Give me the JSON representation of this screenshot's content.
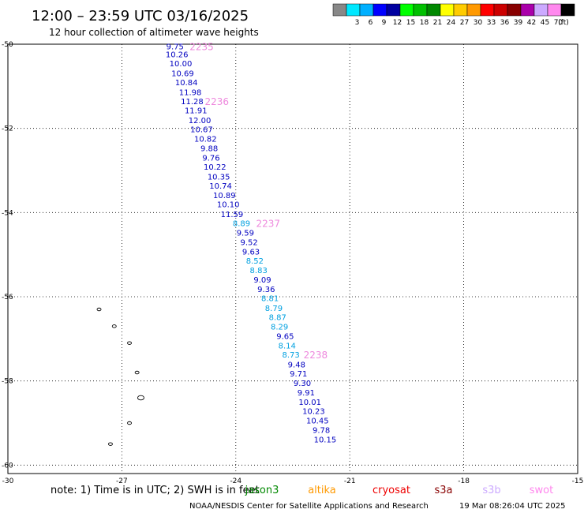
{
  "header": {
    "title": "12:00 – 23:59 UTC 03/16/2025",
    "subtitle": "12 hour collection of altimeter wave heights"
  },
  "legend": {
    "unit": "(ft)",
    "swatches": [
      {
        "color": "#888888",
        "label": ""
      },
      {
        "color": "#00e8ff",
        "label": "3"
      },
      {
        "color": "#00b0ff",
        "label": "6"
      },
      {
        "color": "#0000ff",
        "label": "9"
      },
      {
        "color": "#0000a0",
        "label": "12"
      },
      {
        "color": "#00ff00",
        "label": "15"
      },
      {
        "color": "#00c000",
        "label": "18"
      },
      {
        "color": "#008800",
        "label": "21"
      },
      {
        "color": "#ffff00",
        "label": "24"
      },
      {
        "color": "#ffcc00",
        "label": "27"
      },
      {
        "color": "#ff9900",
        "label": "30"
      },
      {
        "color": "#ff0000",
        "label": "33"
      },
      {
        "color": "#cc0000",
        "label": "36"
      },
      {
        "color": "#880000",
        "label": "39"
      },
      {
        "color": "#aa00aa",
        "label": "42"
      },
      {
        "color": "#ccaaff",
        "label": "45"
      },
      {
        "color": "#ff88ee",
        "label": "70"
      },
      {
        "color": "#000000",
        "label": ""
      }
    ]
  },
  "map": {
    "lon_range": [
      -30,
      -15
    ],
    "lat_range": [
      -60.2,
      -50
    ],
    "lon_ticks": [
      -30,
      -27,
      -24,
      -21,
      -18,
      -15
    ],
    "lat_ticks": [
      -50,
      -52,
      -54,
      -56,
      -58,
      -60
    ],
    "grid": "dotted"
  },
  "readings": [
    {
      "value": "9.75",
      "lat": -50.05,
      "lon": -25.6,
      "color": "#0000c0"
    },
    {
      "value": "10.26",
      "lat": -50.23,
      "lon": -25.55,
      "color": "#0000c0"
    },
    {
      "value": "10.00",
      "lat": -50.45,
      "lon": -25.45,
      "color": "#0000c0"
    },
    {
      "value": "10.69",
      "lat": -50.68,
      "lon": -25.4,
      "color": "#0000c0"
    },
    {
      "value": "10.84",
      "lat": -50.9,
      "lon": -25.3,
      "color": "#0000c0"
    },
    {
      "value": "11.98",
      "lat": -51.13,
      "lon": -25.2,
      "color": "#0000c0"
    },
    {
      "value": "11.28",
      "lat": -51.35,
      "lon": -25.15,
      "color": "#0000c0"
    },
    {
      "value": "11.91",
      "lat": -51.57,
      "lon": -25.05,
      "color": "#0000c0"
    },
    {
      "value": "12.00",
      "lat": -51.8,
      "lon": -24.95,
      "color": "#0000c0"
    },
    {
      "value": "10.67",
      "lat": -52.02,
      "lon": -24.9,
      "color": "#0000c0"
    },
    {
      "value": "10.82",
      "lat": -52.24,
      "lon": -24.8,
      "color": "#0000c0"
    },
    {
      "value": "9.88",
      "lat": -52.47,
      "lon": -24.7,
      "color": "#0000c0"
    },
    {
      "value": "9.76",
      "lat": -52.69,
      "lon": -24.65,
      "color": "#0000c0"
    },
    {
      "value": "10.22",
      "lat": -52.91,
      "lon": -24.55,
      "color": "#0000c0"
    },
    {
      "value": "10.35",
      "lat": -53.14,
      "lon": -24.45,
      "color": "#0000c0"
    },
    {
      "value": "10.74",
      "lat": -53.36,
      "lon": -24.4,
      "color": "#0000c0"
    },
    {
      "value": "10.89",
      "lat": -53.58,
      "lon": -24.3,
      "color": "#0000c0"
    },
    {
      "value": "10.10",
      "lat": -53.8,
      "lon": -24.2,
      "color": "#0000c0"
    },
    {
      "value": "11.59",
      "lat": -54.03,
      "lon": -24.1,
      "color": "#0000c0"
    },
    {
      "value": "8.89",
      "lat": -54.25,
      "lon": -23.85,
      "color": "#00a0e0"
    },
    {
      "value": "9.59",
      "lat": -54.47,
      "lon": -23.75,
      "color": "#0000c0"
    },
    {
      "value": "9.52",
      "lat": -54.7,
      "lon": -23.65,
      "color": "#0000c0"
    },
    {
      "value": "9.63",
      "lat": -54.92,
      "lon": -23.6,
      "color": "#0000c0"
    },
    {
      "value": "8.52",
      "lat": -55.14,
      "lon": -23.5,
      "color": "#00a0e0"
    },
    {
      "value": "8.83",
      "lat": -55.36,
      "lon": -23.4,
      "color": "#00a0e0"
    },
    {
      "value": "9.09",
      "lat": -55.59,
      "lon": -23.3,
      "color": "#0000c0"
    },
    {
      "value": "9.36",
      "lat": -55.81,
      "lon": -23.2,
      "color": "#0000c0"
    },
    {
      "value": "8.81",
      "lat": -56.03,
      "lon": -23.1,
      "color": "#00a0e0"
    },
    {
      "value": "8.79",
      "lat": -56.26,
      "lon": -23.0,
      "color": "#00a0e0"
    },
    {
      "value": "8.87",
      "lat": -56.48,
      "lon": -22.9,
      "color": "#00a0e0"
    },
    {
      "value": "8.29",
      "lat": -56.7,
      "lon": -22.85,
      "color": "#00a0e0"
    },
    {
      "value": "9.65",
      "lat": -56.93,
      "lon": -22.7,
      "color": "#0000c0"
    },
    {
      "value": "8.14",
      "lat": -57.15,
      "lon": -22.65,
      "color": "#00a0e0"
    },
    {
      "value": "8.73",
      "lat": -57.37,
      "lon": -22.55,
      "color": "#00a0e0"
    },
    {
      "value": "9.48",
      "lat": -57.6,
      "lon": -22.4,
      "color": "#0000c0"
    },
    {
      "value": "9.71",
      "lat": -57.82,
      "lon": -22.35,
      "color": "#0000c0"
    },
    {
      "value": "9.30",
      "lat": -58.04,
      "lon": -22.25,
      "color": "#0000c0"
    },
    {
      "value": "9.91",
      "lat": -58.27,
      "lon": -22.15,
      "color": "#0000c0"
    },
    {
      "value": "10.01",
      "lat": -58.49,
      "lon": -22.05,
      "color": "#0000c0"
    },
    {
      "value": "10.23",
      "lat": -58.71,
      "lon": -21.95,
      "color": "#0000c0"
    },
    {
      "value": "10.45",
      "lat": -58.93,
      "lon": -21.85,
      "color": "#0000c0"
    },
    {
      "value": "9.78",
      "lat": -59.16,
      "lon": -21.75,
      "color": "#0000c0"
    },
    {
      "value": "10.15",
      "lat": -59.38,
      "lon": -21.65,
      "color": "#0000c0"
    }
  ],
  "passes": [
    {
      "label": "2235",
      "lat": -50.05,
      "lon": -24.9
    },
    {
      "label": "2236",
      "lat": -51.35,
      "lon": -24.5
    },
    {
      "label": "2237",
      "lat": -54.25,
      "lon": -23.15
    },
    {
      "label": "2238",
      "lat": -57.37,
      "lon": -21.9
    }
  ],
  "islands": [
    {
      "lon": -27.6,
      "lat": -56.3
    },
    {
      "lon": -27.2,
      "lat": -56.7
    },
    {
      "lon": -26.8,
      "lat": -57.1
    },
    {
      "lon": -26.6,
      "lat": -57.8
    },
    {
      "lon": -26.5,
      "lat": -58.4
    },
    {
      "lon": -26.8,
      "lat": -59.0
    },
    {
      "lon": -27.3,
      "lat": -59.5
    }
  ],
  "footer": {
    "note": "note:  1) Time is in UTC; 2) SWH is in feet",
    "satellites": [
      {
        "name": "jason3",
        "color": "#008800"
      },
      {
        "name": "altika",
        "color": "#ff9900"
      },
      {
        "name": "cryosat",
        "color": "#ee0000"
      },
      {
        "name": "s3a",
        "color": "#880000"
      },
      {
        "name": "s3b",
        "color": "#ccaaff"
      },
      {
        "name": "swot",
        "color": "#ff88ee"
      }
    ],
    "credit": "NOAA/NESDIS Center for Satellite Applications and Research",
    "timestamp": "19 Mar 08:26:04 UTC 2025"
  }
}
